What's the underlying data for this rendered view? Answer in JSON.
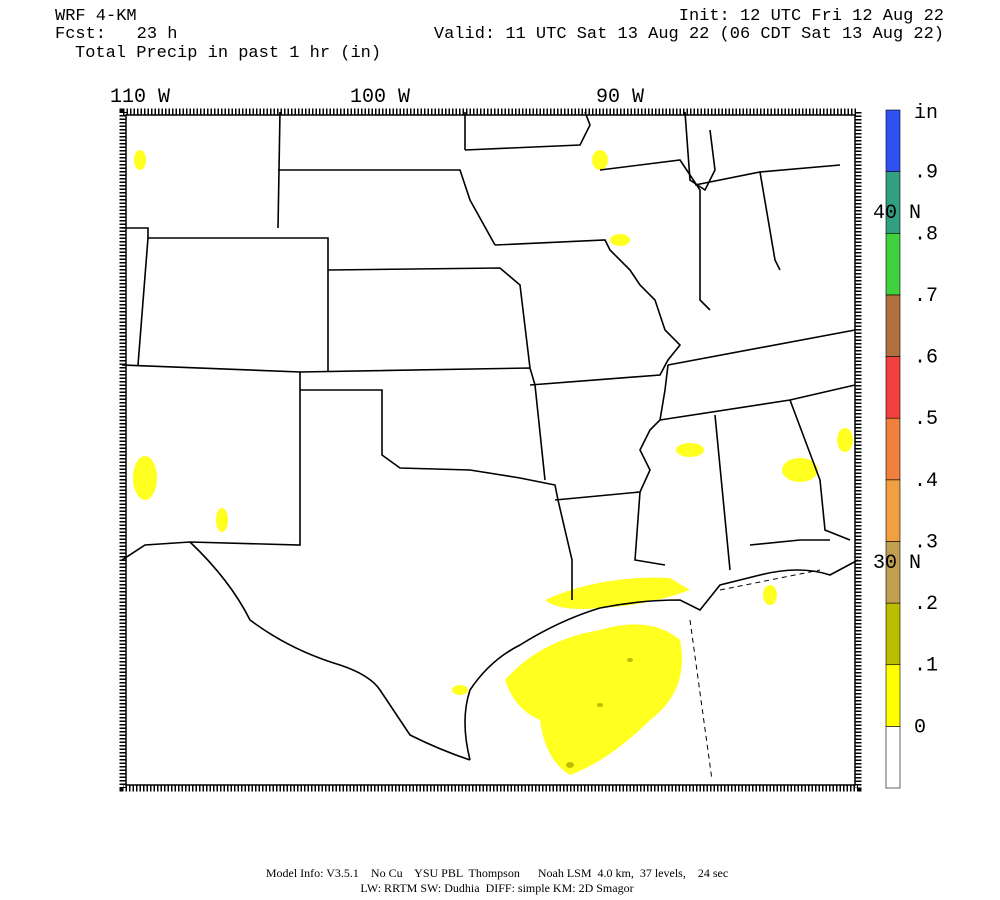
{
  "header": {
    "model": "WRF 4-KM",
    "forecast": "Fcst:   23 h",
    "field": "Total Precip in past 1 hr (in)",
    "init": "Init: 12 UTC Fri 12 Aug 22",
    "valid": "Valid: 11 UTC Sat 13 Aug 22 (06 CDT Sat 13 Aug 22)"
  },
  "map": {
    "longitude_labels": [
      "110 W",
      "100 W",
      "90 W"
    ],
    "latitude_labels": [
      "40 N",
      "30 N"
    ]
  },
  "colorbar": {
    "unit": "in",
    "labels": [
      "0",
      ".1",
      ".2",
      ".3",
      ".4",
      ".5",
      ".6",
      ".7",
      ".8",
      ".9"
    ],
    "colors": [
      "#ffffff",
      "#ffff00",
      "#bdbd00",
      "#c0a050",
      "#f0a040",
      "#f08040",
      "#f04040",
      "#b07040",
      "#40d040",
      "#30a080",
      "#3050f0"
    ]
  },
  "footer": {
    "line1": "Model Info: V3.5.1    No Cu    YSU PBL  Thompson      Noah LSM  4.0 km,  37 levels,    24 sec",
    "line2": "LW: RRTM SW: Dudhia  DIFF: simple KM: 2D Smagor"
  }
}
